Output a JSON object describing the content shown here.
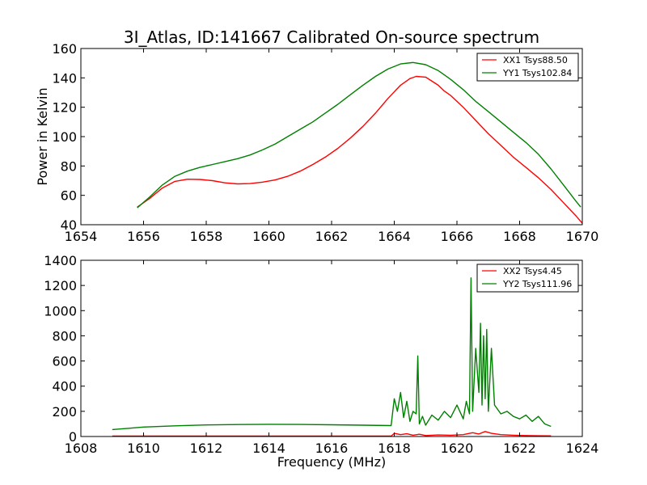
{
  "chart_data": [
    {
      "type": "line",
      "title": "3I_Atlas, ID:141667 Calibrated On-source spectrum",
      "xlabel": "",
      "ylabel": "Power in Kelvin",
      "xlim": [
        1654,
        1670
      ],
      "ylim": [
        40,
        160
      ],
      "xticks": [
        1654,
        1656,
        1658,
        1660,
        1662,
        1664,
        1666,
        1668,
        1670
      ],
      "yticks": [
        40,
        60,
        80,
        100,
        120,
        140,
        160
      ],
      "legend_position": "top-right",
      "series": [
        {
          "name": "XX1 Tsys88.50",
          "color": "#ff0000",
          "x": [
            1655.8,
            1656.2,
            1656.6,
            1657.0,
            1657.4,
            1657.8,
            1658.2,
            1658.6,
            1659.0,
            1659.4,
            1659.8,
            1660.2,
            1660.6,
            1661.0,
            1661.4,
            1661.8,
            1662.2,
            1662.6,
            1663.0,
            1663.4,
            1663.8,
            1664.2,
            1664.5,
            1664.7,
            1665.0,
            1665.4,
            1665.6,
            1665.8,
            1666.2,
            1666.6,
            1667.0,
            1667.4,
            1667.8,
            1668.2,
            1668.6,
            1669.0,
            1669.4,
            1669.8,
            1670.0
          ],
          "values": [
            52,
            58,
            65,
            69.5,
            71,
            70.8,
            70,
            68.5,
            67.8,
            68,
            69,
            70.5,
            73,
            76.5,
            81,
            86,
            92,
            99,
            107,
            116,
            126,
            135,
            139.5,
            141,
            140.5,
            135,
            131,
            128,
            120,
            111,
            102,
            94,
            86,
            79,
            72,
            64,
            55,
            46,
            41
          ]
        },
        {
          "name": "YY1 Tsys102.84",
          "color": "#008000",
          "x": [
            1655.8,
            1656.2,
            1656.6,
            1657.0,
            1657.4,
            1657.8,
            1658.2,
            1658.6,
            1659.0,
            1659.4,
            1659.8,
            1660.2,
            1660.6,
            1661.0,
            1661.4,
            1661.8,
            1662.2,
            1662.6,
            1663.0,
            1663.4,
            1663.8,
            1664.2,
            1664.6,
            1665.0,
            1665.4,
            1665.6,
            1665.8,
            1666.2,
            1666.6,
            1667.0,
            1667.4,
            1667.8,
            1668.2,
            1668.6,
            1669.0,
            1669.4,
            1669.8,
            1669.95
          ],
          "values": [
            51.5,
            59,
            67,
            73,
            76.5,
            79,
            81,
            83,
            85,
            87.5,
            91,
            95,
            100,
            105,
            110,
            116,
            122,
            128.5,
            135,
            141,
            146,
            149.5,
            150.5,
            149,
            145,
            142,
            139,
            132,
            124,
            117,
            110,
            103,
            96,
            88,
            78,
            67,
            56,
            52
          ]
        }
      ]
    },
    {
      "type": "line",
      "title": "",
      "xlabel": "Frequency (MHz)",
      "ylabel": "",
      "xlim": [
        1608,
        1624
      ],
      "ylim": [
        0,
        1400
      ],
      "xticks": [
        1608,
        1610,
        1612,
        1614,
        1616,
        1618,
        1620,
        1622,
        1624
      ],
      "yticks": [
        0,
        200,
        400,
        600,
        800,
        1000,
        1200,
        1400
      ],
      "legend_position": "top-right",
      "series": [
        {
          "name": "XX2 Tsys4.45",
          "color": "#ff0000",
          "x": [
            1609.0,
            1610.0,
            1612.0,
            1614.0,
            1616.0,
            1617.9,
            1618.0,
            1618.2,
            1618.4,
            1618.6,
            1618.8,
            1619.0,
            1619.4,
            1619.8,
            1620.2,
            1620.5,
            1620.7,
            1620.9,
            1621.1,
            1621.4,
            1621.8,
            1622.2,
            1622.6,
            1623.0
          ],
          "values": [
            3,
            3,
            3,
            3,
            3,
            3,
            25,
            15,
            22,
            10,
            18,
            8,
            12,
            10,
            15,
            30,
            20,
            40,
            25,
            15,
            10,
            8,
            6,
            5
          ]
        },
        {
          "name": "YY2 Tsys111.96",
          "color": "#008000",
          "x": [
            1609.0,
            1609.5,
            1610.0,
            1611.0,
            1612.0,
            1613.0,
            1614.0,
            1615.0,
            1616.0,
            1617.0,
            1617.9,
            1618.0,
            1618.1,
            1618.2,
            1618.3,
            1618.4,
            1618.5,
            1618.6,
            1618.7,
            1618.75,
            1618.8,
            1618.9,
            1619.0,
            1619.2,
            1619.4,
            1619.6,
            1619.8,
            1620.0,
            1620.2,
            1620.3,
            1620.4,
            1620.45,
            1620.5,
            1620.6,
            1620.7,
            1620.75,
            1620.8,
            1620.85,
            1620.9,
            1620.95,
            1621.0,
            1621.1,
            1621.2,
            1621.4,
            1621.6,
            1621.8,
            1622.0,
            1622.2,
            1622.4,
            1622.6,
            1622.8,
            1623.0
          ],
          "values": [
            55,
            65,
            75,
            85,
            92,
            95,
            97,
            96,
            93,
            90,
            87,
            300,
            200,
            350,
            150,
            280,
            120,
            200,
            180,
            640,
            100,
            160,
            90,
            170,
            130,
            200,
            150,
            250,
            140,
            280,
            180,
            1260,
            200,
            700,
            350,
            900,
            250,
            800,
            300,
            850,
            200,
            700,
            250,
            180,
            200,
            160,
            140,
            170,
            120,
            160,
            100,
            80
          ]
        }
      ]
    }
  ]
}
